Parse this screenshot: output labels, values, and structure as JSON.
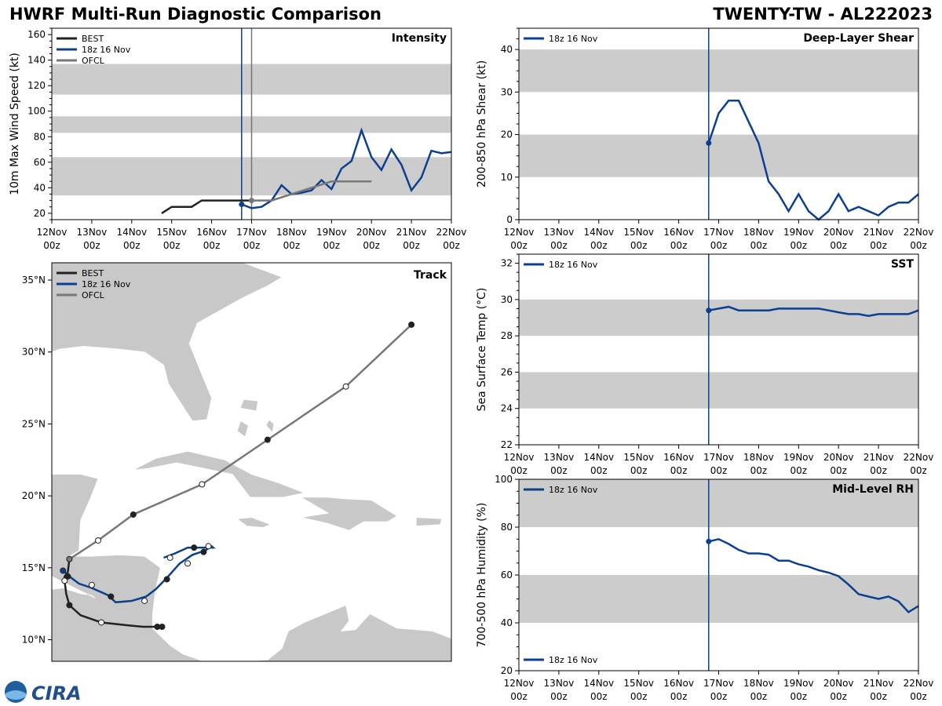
{
  "header": {
    "title": "HWRF Multi-Run Diagnostic Comparison",
    "storm": "TWENTY-TW - AL222023"
  },
  "logo": {
    "text": "CIRA"
  },
  "colors": {
    "best": "#222222",
    "run": "#0d3f8f",
    "ofcl": "#777777",
    "band": "#cccccc",
    "land": "#c8c8c8"
  },
  "time_axis": {
    "labels": [
      "12Nov",
      "13Nov",
      "14Nov",
      "15Nov",
      "16Nov",
      "17Nov",
      "18Nov",
      "19Nov",
      "20Nov",
      "21Nov",
      "22Nov"
    ],
    "sublabel": "00z",
    "range": [
      0,
      10
    ],
    "init_time": 4.75
  },
  "chart_data": [
    {
      "id": "intensity",
      "type": "line",
      "title": "Intensity",
      "ylabel": "10m Max Wind Speed (kt)",
      "ylim": [
        15,
        165
      ],
      "yticks": [
        20,
        40,
        60,
        80,
        100,
        120,
        140,
        160
      ],
      "bands": [
        [
          34,
          64
        ],
        [
          83,
          96
        ],
        [
          113,
          137
        ]
      ],
      "ofcl_time": 5,
      "legend": [
        "BEST",
        "18z 16 Nov",
        "OFCL"
      ],
      "series": [
        {
          "name": "BEST",
          "x": [
            2.75,
            3,
            3.25,
            3.5,
            3.75,
            4,
            4.25,
            4.5,
            4.75,
            5
          ],
          "y": [
            20,
            25,
            25,
            25,
            30,
            30,
            30,
            30,
            30,
            30
          ]
        },
        {
          "name": "18z 16 Nov",
          "x": [
            4.75,
            5,
            5.25,
            5.5,
            5.75,
            6,
            6.25,
            6.5,
            6.75,
            7,
            7.25,
            7.5,
            7.75,
            8,
            8.25,
            8.5,
            8.75,
            9,
            9.25,
            9.5,
            9.75,
            10
          ],
          "y": [
            27,
            24,
            25,
            30,
            42,
            35,
            36,
            38,
            46,
            39,
            55,
            61,
            85,
            64,
            54,
            70,
            58,
            38,
            48,
            69,
            67,
            68
          ]
        },
        {
          "name": "OFCL",
          "x": [
            5,
            5.5,
            6,
            6.5,
            7,
            7.5,
            8
          ],
          "y": [
            30,
            30,
            35,
            40,
            45,
            45,
            45
          ]
        }
      ]
    },
    {
      "id": "shear",
      "type": "line",
      "title": "Deep-Layer Shear",
      "ylabel": "200-850 hPa Shear (kt)",
      "ylim": [
        0,
        45
      ],
      "yticks": [
        0,
        10,
        20,
        30,
        40
      ],
      "bands": [
        [
          10,
          20
        ],
        [
          30,
          40
        ]
      ],
      "legend": [
        "18z 16 Nov"
      ],
      "series": [
        {
          "name": "18z 16 Nov",
          "x": [
            4.75,
            5,
            5.25,
            5.5,
            5.75,
            6,
            6.25,
            6.5,
            6.75,
            7,
            7.25,
            7.5,
            7.75,
            8,
            8.25,
            8.5,
            8.75,
            9,
            9.25,
            9.5,
            9.75,
            10
          ],
          "y": [
            18,
            25,
            28,
            28,
            23,
            18,
            9,
            6,
            2,
            6,
            2,
            0,
            2,
            6,
            2,
            3,
            2,
            1,
            3,
            4,
            4,
            6
          ]
        }
      ]
    },
    {
      "id": "sst",
      "type": "line",
      "title": "SST",
      "ylabel": "Sea Surface Temp (°C)",
      "ylim": [
        22,
        32.5
      ],
      "yticks": [
        22,
        24,
        26,
        28,
        30,
        32
      ],
      "bands": [
        [
          24,
          26
        ],
        [
          28,
          30
        ]
      ],
      "legend": [
        "18z 16 Nov"
      ],
      "series": [
        {
          "name": "18z 16 Nov",
          "x": [
            4.75,
            5,
            5.25,
            5.5,
            5.75,
            6,
            6.25,
            6.5,
            6.75,
            7,
            7.25,
            7.5,
            7.75,
            8,
            8.25,
            8.5,
            8.75,
            9,
            9.25,
            9.5,
            9.75,
            10
          ],
          "y": [
            29.4,
            29.5,
            29.6,
            29.4,
            29.4,
            29.4,
            29.4,
            29.5,
            29.5,
            29.5,
            29.5,
            29.5,
            29.4,
            29.3,
            29.2,
            29.2,
            29.1,
            29.2,
            29.2,
            29.2,
            29.2,
            29.4
          ]
        }
      ]
    },
    {
      "id": "rh",
      "type": "line",
      "title": "Mid-Level RH",
      "ylabel": "700-500 hPa Humidity (%)",
      "ylim": [
        20,
        100
      ],
      "yticks": [
        20,
        40,
        60,
        80,
        100
      ],
      "bands": [
        [
          40,
          60
        ],
        [
          80,
          100
        ]
      ],
      "legend": [
        "18z 16 Nov"
      ],
      "series": [
        {
          "name": "18z 16 Nov",
          "x": [
            4.75,
            5,
            5.25,
            5.5,
            5.75,
            6,
            6.25,
            6.5,
            6.75,
            7,
            7.25,
            7.5,
            7.75,
            8,
            8.25,
            8.5,
            8.75,
            9,
            9.25,
            9.5,
            9.75,
            10
          ],
          "y": [
            74,
            75,
            73,
            70.5,
            69,
            69,
            68.5,
            66,
            66,
            64.5,
            63.5,
            62,
            61,
            59.5,
            56,
            52,
            51,
            50,
            51,
            49,
            44.5,
            47
          ]
        }
      ]
    },
    {
      "id": "track",
      "type": "scatter",
      "title": "Track",
      "lon_range": [
        -90,
        -65
      ],
      "lat_range": [
        8.5,
        36.2
      ],
      "lat_ticks": [
        10,
        15,
        20,
        25,
        30,
        35
      ],
      "lat_labels": [
        "10°N",
        "15°N",
        "20°N",
        "25°N",
        "30°N",
        "35°N"
      ],
      "legend": [
        "BEST",
        "18z 16 Nov",
        "OFCL"
      ],
      "series": [
        {
          "name": "BEST",
          "lon": [
            -83.1,
            -83.4,
            -84.3,
            -85.2,
            -86.9,
            -88.2,
            -88.9,
            -89.1,
            -89.2,
            -89.2,
            -89.0,
            -88.9
          ],
          "lat": [
            10.9,
            10.9,
            10.9,
            11.0,
            11.2,
            11.7,
            12.4,
            13.2,
            14.1,
            14.4,
            14.7,
            15.6
          ],
          "markers": [
            {
              "lon": -83.1,
              "lat": 10.9,
              "fill": true
            },
            {
              "lon": -83.4,
              "lat": 10.9,
              "fill": true
            },
            {
              "lon": -86.9,
              "lat": 11.2,
              "fill": false
            },
            {
              "lon": -88.9,
              "lat": 12.4,
              "fill": true
            },
            {
              "lon": -89.2,
              "lat": 14.1,
              "fill": false
            },
            {
              "lon": -89.0,
              "lat": 14.4,
              "fill": true
            }
          ]
        },
        {
          "name": "18z 16 Nov",
          "lon": [
            -89.3,
            -88.9,
            -88.3,
            -87.5,
            -86.5,
            -86.0,
            -85.0,
            -84.1,
            -83.5,
            -82.8,
            -82.0,
            -81.2,
            -80.4,
            -80.0,
            -79.9,
            -81.5,
            -82.3,
            -83.0
          ],
          "lat": [
            14.8,
            14.4,
            13.9,
            13.6,
            13.1,
            12.6,
            12.7,
            13.0,
            13.5,
            14.3,
            15.3,
            15.9,
            16.2,
            16.5,
            16.4,
            16.4,
            16.0,
            15.7
          ],
          "markers": [
            {
              "lon": -89.3,
              "lat": 14.8,
              "fill": true
            },
            {
              "lon": -87.5,
              "lat": 13.8,
              "fill": false
            },
            {
              "lon": -86.3,
              "lat": 13.0,
              "fill": true
            },
            {
              "lon": -84.2,
              "lat": 12.7,
              "fill": false
            },
            {
              "lon": -82.8,
              "lat": 14.2,
              "fill": true
            },
            {
              "lon": -81.5,
              "lat": 15.3,
              "fill": false
            },
            {
              "lon": -80.5,
              "lat": 16.1,
              "fill": true
            },
            {
              "lon": -81.1,
              "lat": 16.4,
              "fill": true
            },
            {
              "lon": -80.2,
              "lat": 16.5,
              "fill": false
            },
            {
              "lon": -82.6,
              "lat": 15.7,
              "fill": false
            }
          ]
        },
        {
          "name": "OFCL",
          "lon": [
            -88.9,
            -87.1,
            -84.9,
            -80.6,
            -76.5,
            -71.6,
            -67.5
          ],
          "lat": [
            15.6,
            16.9,
            18.7,
            20.8,
            23.9,
            27.6,
            31.9
          ],
          "markers": [
            {
              "lon": -88.9,
              "lat": 15.6,
              "fill": true
            },
            {
              "lon": -87.1,
              "lat": 16.9,
              "fill": false
            },
            {
              "lon": -84.9,
              "lat": 18.7,
              "fill": true
            },
            {
              "lon": -80.6,
              "lat": 20.8,
              "fill": false
            },
            {
              "lon": -76.5,
              "lat": 23.9,
              "fill": true
            },
            {
              "lon": -71.6,
              "lat": 27.6,
              "fill": false
            },
            {
              "lon": -67.5,
              "lat": 31.9,
              "fill": true
            }
          ]
        }
      ]
    }
  ]
}
